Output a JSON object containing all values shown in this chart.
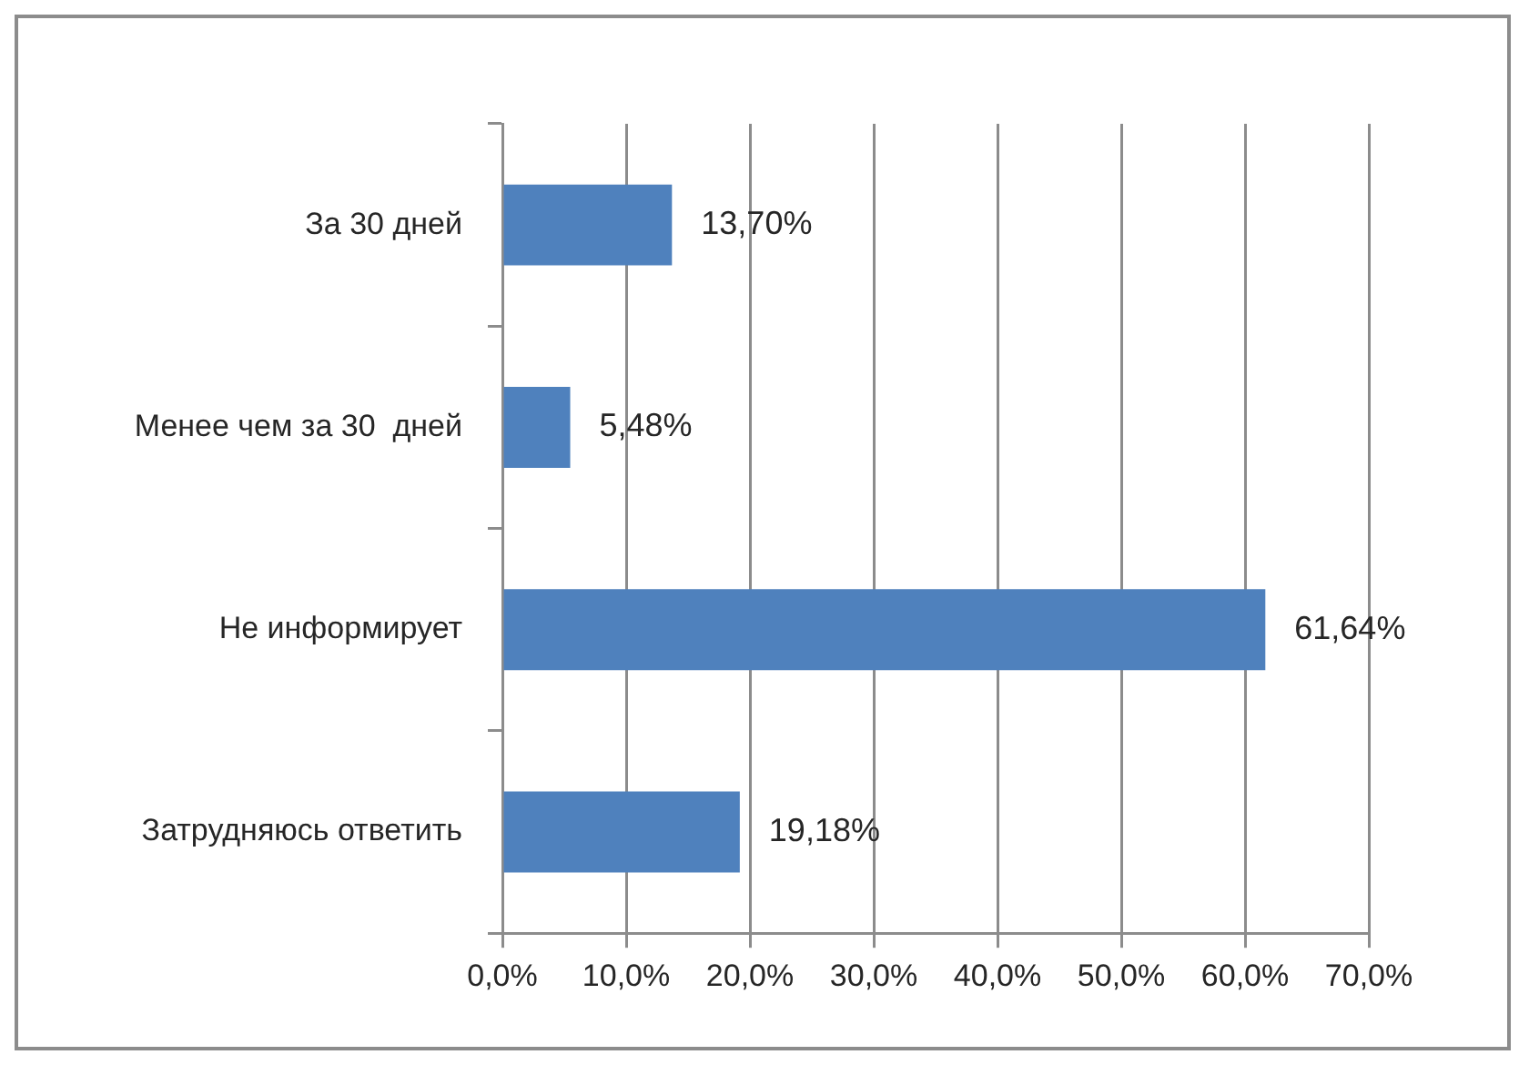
{
  "chart_data": {
    "type": "bar",
    "orientation": "horizontal",
    "categories": [
      "За 30 дней",
      "Менее чем за 30  дней",
      "Не информирует",
      "Затрудняюсь ответить"
    ],
    "values": [
      13.7,
      5.48,
      61.64,
      19.18
    ],
    "value_labels": [
      "13,70%",
      "5,48%",
      "61,64%",
      "19,18%"
    ],
    "color": "#4f81bd",
    "xlim": [
      0,
      70
    ],
    "xticks": [
      {
        "value": 0,
        "label": "0,0%"
      },
      {
        "value": 10,
        "label": "10,0%"
      },
      {
        "value": 20,
        "label": "20,0%"
      },
      {
        "value": 30,
        "label": "30,0%"
      },
      {
        "value": 40,
        "label": "40,0%"
      },
      {
        "value": 50,
        "label": "50,0%"
      },
      {
        "value": 60,
        "label": "60,0%"
      },
      {
        "value": 70,
        "label": "70,0%"
      }
    ],
    "grid": "x"
  }
}
